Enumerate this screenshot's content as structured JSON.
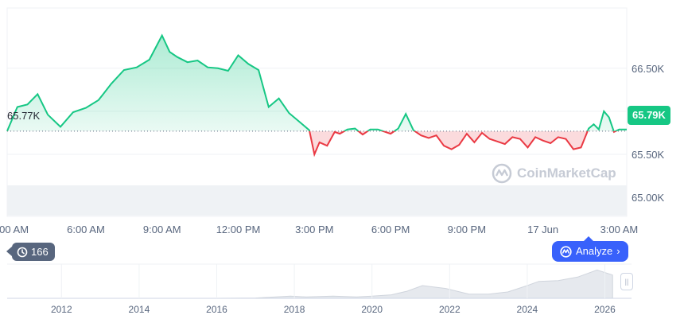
{
  "chart_data": {
    "type": "line",
    "start_price_label": "65.77K",
    "current_price_label": "65.79K",
    "y_ticks": [
      "66.50K",
      "66.00K",
      "65.50K",
      "65.00K"
    ],
    "y_tick_values": [
      66500,
      66000,
      65500,
      65000
    ],
    "ylim": [
      64780,
      67200
    ],
    "baseline": 65770,
    "x_ticks": [
      "3:00 AM",
      "6:00 AM",
      "9:00 AM",
      "12:00 PM",
      "3:00 PM",
      "6:00 PM",
      "9:00 PM",
      "17 Jun",
      "3:00 AM"
    ],
    "x_tick_hours": [
      3,
      6,
      9,
      12,
      15,
      18,
      21,
      24,
      27
    ],
    "series_hours": [
      2.9,
      3.3,
      3.7,
      4.1,
      4.5,
      5.0,
      5.5,
      6.0,
      6.5,
      7.0,
      7.5,
      8.0,
      8.5,
      9.0,
      9.3,
      9.6,
      10.0,
      10.4,
      10.8,
      11.2,
      11.6,
      12.0,
      12.4,
      12.8,
      13.2,
      13.6,
      14.0,
      14.4,
      14.8,
      15.0,
      15.2,
      15.5,
      15.8,
      16.0,
      16.3,
      16.6,
      16.9,
      17.2,
      17.5,
      17.8,
      18.0,
      18.3,
      18.6,
      18.9,
      19.2,
      19.5,
      19.8,
      20.1,
      20.4,
      20.7,
      21.0,
      21.3,
      21.6,
      21.9,
      22.2,
      22.5,
      22.8,
      23.1,
      23.4,
      23.7,
      24.0,
      24.3,
      24.6,
      24.9,
      25.2,
      25.5,
      25.8,
      26.0,
      26.2,
      26.4,
      26.6,
      26.8,
      27.0,
      27.3
    ],
    "series_values": [
      65770,
      66050,
      66080,
      66200,
      65960,
      65820,
      65990,
      66040,
      66130,
      66320,
      66480,
      66510,
      66600,
      66880,
      66690,
      66630,
      66570,
      66590,
      66510,
      66500,
      66470,
      66650,
      66550,
      66480,
      66050,
      66150,
      65980,
      65880,
      65780,
      65500,
      65640,
      65600,
      65760,
      65740,
      65790,
      65800,
      65730,
      65790,
      65790,
      65760,
      65740,
      65800,
      65970,
      65780,
      65720,
      65690,
      65720,
      65600,
      65560,
      65610,
      65740,
      65640,
      65750,
      65680,
      65650,
      65620,
      65700,
      65680,
      65580,
      65700,
      65660,
      65630,
      65700,
      65680,
      65560,
      65580,
      65800,
      65850,
      65790,
      66000,
      65930,
      65760,
      65790,
      65790
    ],
    "history_ticks": [
      "2012",
      "2014",
      "2016",
      "2018",
      "2020",
      "2022",
      "2024",
      "2026"
    ],
    "history_years": [
      2010.6,
      2012,
      2013,
      2014,
      2015,
      2016,
      2017,
      2017.9,
      2018.3,
      2019,
      2019.6,
      2020,
      2020.5,
      2020.9,
      2021.3,
      2021.9,
      2022.5,
      2023,
      2023.5,
      2024,
      2024.3,
      2024.8,
      2025.3,
      2025.8,
      2026.2
    ],
    "history_values": [
      0,
      0,
      0,
      0,
      0,
      0,
      0.5,
      3,
      2,
      3,
      2,
      3,
      5,
      10,
      18,
      14,
      6,
      6,
      9,
      18,
      24,
      25,
      30,
      40,
      33
    ]
  },
  "badge_count": "166",
  "analyze_label": "Analyze",
  "watermark_text": "CoinMarketCap",
  "colors": {
    "up": "#16c784",
    "down": "#ea3943",
    "accent": "#3861fb"
  }
}
